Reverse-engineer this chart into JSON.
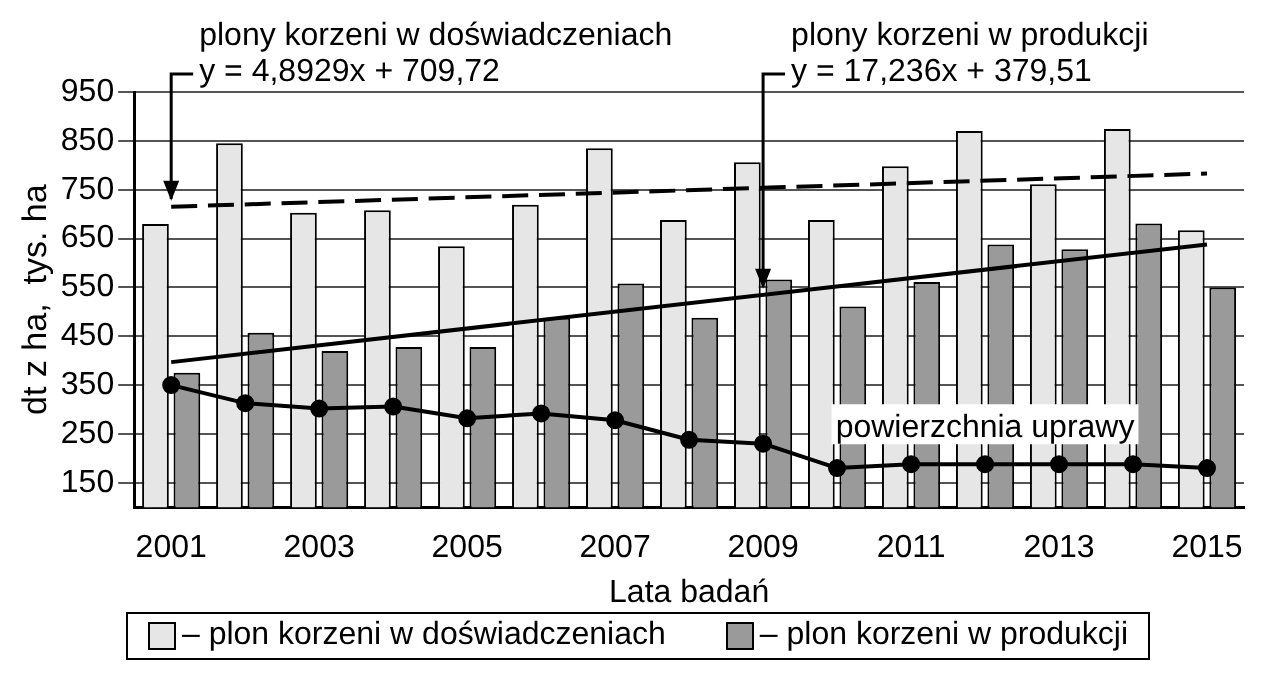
{
  "chart_data": {
    "type": "bar",
    "xlabel": "Lata badań",
    "ylabel": "dt z ha,  tys. ha",
    "categories": [
      "2001",
      null,
      "2003",
      null,
      "2005",
      null,
      "2007",
      null,
      "2009",
      null,
      "2011",
      null,
      "2013",
      null,
      "2015"
    ],
    "series": [
      {
        "name": "– plon korzeni w doświadczeniach",
        "color": "#e6e6e6",
        "values": [
          680,
          845,
          703,
          708,
          634,
          719,
          835,
          688,
          806,
          688,
          798,
          870,
          761,
          874,
          667
        ]
      },
      {
        "name": "– plon korzeni w produkcji",
        "color": "#9a9a9a",
        "values": [
          375,
          457,
          420,
          428,
          428,
          488,
          558,
          488,
          566,
          511,
          561,
          638,
          628,
          681,
          550
        ]
      },
      {
        "name": "powierzchnia uprawy",
        "type": "line",
        "color": "#000000",
        "marker": "circle",
        "values": [
          350,
          313,
          302,
          306,
          282,
          292,
          278,
          238,
          230,
          180,
          188,
          188,
          188,
          188,
          180
        ]
      },
      {
        "type": "line",
        "color": "#000000",
        "marker": "none",
        "line_style": "dashed",
        "values": [
          715,
          null,
          null,
          null,
          null,
          null,
          null,
          null,
          null,
          null,
          null,
          null,
          null,
          null,
          783
        ]
      },
      {
        "type": "line",
        "color": "#000000",
        "marker": "none",
        "line_style": "solid",
        "values": [
          397,
          null,
          null,
          null,
          null,
          null,
          null,
          null,
          null,
          null,
          null,
          null,
          null,
          null,
          638
        ]
      }
    ],
    "annotations": [
      {
        "text": "plony korzeni w doświadczeniach\ny = 4,8929x + 709,72",
        "x": "2001",
        "y": 715
      },
      {
        "text": "plony korzeni w produkcji\ny = 17,236x + 379,51",
        "x": "2009",
        "y": 535
      }
    ],
    "ylim": [
      100,
      950
    ],
    "yticks": [
      150,
      250,
      350,
      450,
      550,
      650,
      750,
      850,
      950
    ],
    "grid": "y",
    "legend": "bottom"
  }
}
